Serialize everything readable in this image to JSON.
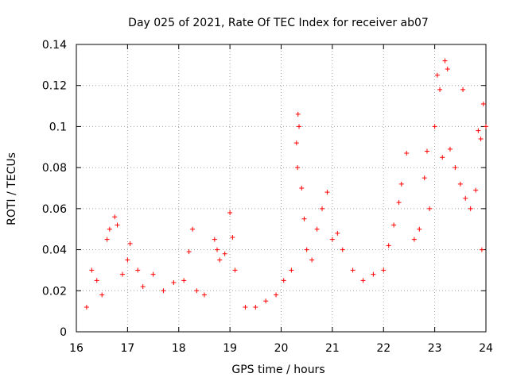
{
  "chart_data": {
    "type": "scatter",
    "title": "Day 025 of 2021, Rate Of TEC Index for receiver ab07",
    "xlabel": "GPS time / hours",
    "ylabel": "ROTI / TECUs",
    "xlim": [
      16,
      24
    ],
    "ylim": [
      0,
      0.14
    ],
    "xticks": [
      16,
      17,
      18,
      19,
      20,
      21,
      22,
      23,
      24
    ],
    "xtick_labels": [
      "16",
      "17",
      "18",
      "19",
      "20",
      "21",
      "22",
      "23",
      "24"
    ],
    "yticks": [
      0,
      0.02,
      0.04,
      0.06,
      0.08,
      0.1,
      0.12,
      0.14
    ],
    "ytick_labels": [
      "0",
      "0.02",
      "0.04",
      "0.06",
      "0.08",
      "0.1",
      "0.12",
      "0.14"
    ],
    "grid": true,
    "marker": "+",
    "color": "#ff0000",
    "series": [
      {
        "name": "ROTI",
        "points": [
          [
            16.2,
            0.012
          ],
          [
            16.3,
            0.03
          ],
          [
            16.4,
            0.025
          ],
          [
            16.5,
            0.018
          ],
          [
            16.6,
            0.045
          ],
          [
            16.65,
            0.05
          ],
          [
            16.75,
            0.056
          ],
          [
            16.8,
            0.052
          ],
          [
            16.9,
            0.028
          ],
          [
            17.0,
            0.035
          ],
          [
            17.05,
            0.043
          ],
          [
            17.2,
            0.03
          ],
          [
            17.3,
            0.022
          ],
          [
            17.5,
            0.028
          ],
          [
            17.7,
            0.02
          ],
          [
            17.9,
            0.024
          ],
          [
            18.1,
            0.025
          ],
          [
            18.2,
            0.039
          ],
          [
            18.27,
            0.05
          ],
          [
            18.35,
            0.02
          ],
          [
            18.5,
            0.018
          ],
          [
            18.7,
            0.045
          ],
          [
            18.75,
            0.04
          ],
          [
            18.8,
            0.035
          ],
          [
            18.9,
            0.038
          ],
          [
            19.0,
            0.058
          ],
          [
            19.05,
            0.046
          ],
          [
            19.1,
            0.03
          ],
          [
            19.3,
            0.012
          ],
          [
            19.5,
            0.012
          ],
          [
            19.7,
            0.015
          ],
          [
            19.9,
            0.018
          ],
          [
            20.05,
            0.025
          ],
          [
            20.2,
            0.03
          ],
          [
            20.33,
            0.106
          ],
          [
            20.35,
            0.1
          ],
          [
            20.3,
            0.092
          ],
          [
            20.32,
            0.08
          ],
          [
            20.4,
            0.07
          ],
          [
            20.45,
            0.055
          ],
          [
            20.5,
            0.04
          ],
          [
            20.6,
            0.035
          ],
          [
            20.7,
            0.05
          ],
          [
            20.8,
            0.06
          ],
          [
            20.9,
            0.068
          ],
          [
            21.0,
            0.045
          ],
          [
            21.1,
            0.048
          ],
          [
            21.2,
            0.04
          ],
          [
            21.4,
            0.03
          ],
          [
            21.6,
            0.025
          ],
          [
            21.8,
            0.028
          ],
          [
            22.0,
            0.03
          ],
          [
            22.1,
            0.042
          ],
          [
            22.2,
            0.052
          ],
          [
            22.3,
            0.063
          ],
          [
            22.35,
            0.072
          ],
          [
            22.45,
            0.087
          ],
          [
            22.6,
            0.045
          ],
          [
            22.7,
            0.05
          ],
          [
            22.8,
            0.075
          ],
          [
            22.85,
            0.088
          ],
          [
            22.9,
            0.06
          ],
          [
            23.0,
            0.1
          ],
          [
            23.05,
            0.125
          ],
          [
            23.1,
            0.118
          ],
          [
            23.2,
            0.132
          ],
          [
            23.25,
            0.128
          ],
          [
            23.15,
            0.085
          ],
          [
            23.3,
            0.089
          ],
          [
            23.4,
            0.08
          ],
          [
            23.5,
            0.072
          ],
          [
            23.55,
            0.118
          ],
          [
            23.6,
            0.065
          ],
          [
            23.7,
            0.06
          ],
          [
            23.8,
            0.069
          ],
          [
            23.85,
            0.098
          ],
          [
            23.9,
            0.094
          ],
          [
            23.95,
            0.111
          ],
          [
            24.0,
            0.1
          ],
          [
            23.92,
            0.04
          ]
        ]
      }
    ]
  }
}
